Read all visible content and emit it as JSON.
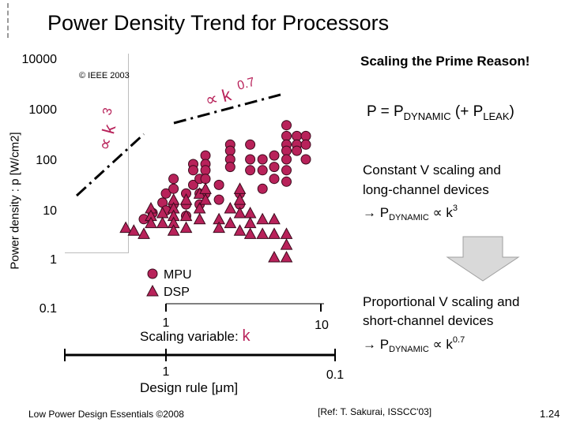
{
  "title": "Power Density Trend for Processors",
  "ylabel": "Power density : p [W/cm2]",
  "ieee": "© IEEE 2003",
  "right_title": "Scaling the Prime Reason!",
  "power_eq": {
    "p": "P = P",
    "dyn": "DYNAMIC",
    "mid": " (+ P",
    "leak": "LEAK",
    "end": ")"
  },
  "constant": {
    "line1": "Constant V scaling and",
    "line2": "long-channel devices",
    "arrow": "→ P",
    "dyn": "DYNAMIC",
    "prop": " ∝ k",
    "exp": "3"
  },
  "proportional": {
    "line1": "Proportional V scaling and",
    "line2": "short-channel devices",
    "arrow": "→ P",
    "dyn": "DYNAMIC",
    "prop": " ∝ k",
    "exp": "0.7"
  },
  "footer": {
    "left": "Low Power Design Essentials ©2008",
    "mid": "[Ref: T. Sakurai, ISSCC'03]",
    "right": "1.24"
  },
  "colors": {
    "mpu": "#b8225a",
    "dsp": "#b8225a",
    "annot": "#b8225a",
    "arrow_gray": "#d8d8d8"
  },
  "chart_data": {
    "type": "scatter",
    "title": "Power Density Trend for Processors",
    "ylabel": "Power density : p [W/cm2]",
    "yscale": "log",
    "ylim": [
      0.1,
      10000
    ],
    "yticks": [
      "10000",
      "1000",
      "100",
      "10",
      "1",
      "0.1"
    ],
    "x_axes": [
      {
        "label": "Scaling variable: ",
        "label_var": "k",
        "ticks": [
          "1",
          "10"
        ]
      },
      {
        "label": "Design rule [μm]",
        "ticks": [
          "1",
          "0.1"
        ]
      }
    ],
    "legend": {
      "placement": "bottom-center",
      "entries": [
        "MPU",
        "DSP"
      ]
    },
    "annotations": [
      {
        "text": "∝ k",
        "exp": "3"
      },
      {
        "text": "∝ k",
        "exp": "0.7"
      }
    ],
    "series": [
      {
        "name": "MPU",
        "marker": "circle",
        "points": [
          [
            0.72,
            6
          ],
          [
            0.95,
            13
          ],
          [
            1.0,
            20
          ],
          [
            1.12,
            40
          ],
          [
            1.12,
            25
          ],
          [
            1.12,
            12
          ],
          [
            1.0,
            9
          ],
          [
            0.82,
            8
          ],
          [
            1.35,
            20
          ],
          [
            1.35,
            12
          ],
          [
            1.35,
            7
          ],
          [
            1.5,
            80
          ],
          [
            1.5,
            60
          ],
          [
            1.5,
            30
          ],
          [
            1.65,
            40
          ],
          [
            1.65,
            20
          ],
          [
            1.65,
            12
          ],
          [
            1.8,
            120
          ],
          [
            1.8,
            80
          ],
          [
            1.8,
            60
          ],
          [
            1.8,
            40
          ],
          [
            1.8,
            20
          ],
          [
            2.2,
            30
          ],
          [
            2.2,
            15
          ],
          [
            2.6,
            200
          ],
          [
            2.6,
            150
          ],
          [
            2.6,
            100
          ],
          [
            2.6,
            70
          ],
          [
            3.0,
            20
          ],
          [
            3.0,
            12
          ],
          [
            3.5,
            200
          ],
          [
            3.5,
            100
          ],
          [
            3.5,
            60
          ],
          [
            4.2,
            100
          ],
          [
            4.2,
            60
          ],
          [
            4.2,
            25
          ],
          [
            5.0,
            120
          ],
          [
            5.0,
            70
          ],
          [
            5.0,
            40
          ],
          [
            6.0,
            500
          ],
          [
            6.0,
            300
          ],
          [
            6.0,
            200
          ],
          [
            6.0,
            150
          ],
          [
            6.0,
            100
          ],
          [
            6.0,
            60
          ],
          [
            6.0,
            35
          ],
          [
            7.0,
            300
          ],
          [
            7.0,
            200
          ],
          [
            7.0,
            150
          ],
          [
            8.0,
            300
          ],
          [
            8.0,
            200
          ],
          [
            8.0,
            100
          ]
        ]
      },
      {
        "name": "DSP",
        "marker": "triangle",
        "points": [
          [
            0.55,
            4
          ],
          [
            0.62,
            3.5
          ],
          [
            0.72,
            3
          ],
          [
            0.8,
            10
          ],
          [
            0.8,
            7
          ],
          [
            0.8,
            5
          ],
          [
            0.95,
            8
          ],
          [
            0.95,
            5
          ],
          [
            1.12,
            15
          ],
          [
            1.12,
            10
          ],
          [
            1.12,
            7
          ],
          [
            1.12,
            5
          ],
          [
            1.12,
            3.5
          ],
          [
            1.35,
            15
          ],
          [
            1.35,
            7
          ],
          [
            1.35,
            4
          ],
          [
            1.65,
            20
          ],
          [
            1.65,
            10
          ],
          [
            1.65,
            6
          ],
          [
            1.8,
            25
          ],
          [
            1.8,
            15
          ],
          [
            2.2,
            6
          ],
          [
            2.2,
            4
          ],
          [
            2.6,
            10
          ],
          [
            2.6,
            5
          ],
          [
            3.0,
            25
          ],
          [
            3.0,
            15
          ],
          [
            3.0,
            8
          ],
          [
            3.0,
            3.5
          ],
          [
            3.5,
            8
          ],
          [
            3.5,
            5
          ],
          [
            3.5,
            3
          ],
          [
            4.2,
            6
          ],
          [
            4.2,
            3
          ],
          [
            5.0,
            6
          ],
          [
            5.0,
            3
          ],
          [
            5.0,
            1
          ],
          [
            6.0,
            3
          ],
          [
            6.0,
            1.8
          ],
          [
            6.0,
            1
          ]
        ]
      }
    ]
  }
}
